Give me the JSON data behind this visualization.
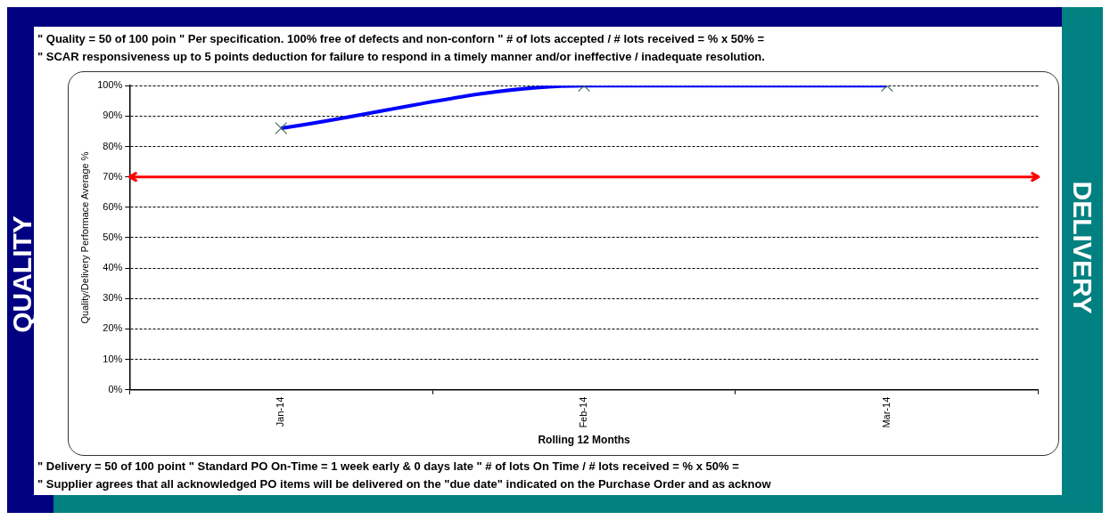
{
  "chart_data": {
    "type": "line",
    "xlabel": "Rolling 12 Months",
    "ylabel": "Quality/Delivery Performace Average %",
    "categories": [
      "Jan-14",
      "Feb-14",
      "Mar-14"
    ],
    "series": [
      {
        "color": "#0000ff",
        "values": [
          86,
          100,
          100
        ]
      }
    ],
    "ylim": [
      0,
      100
    ],
    "yticks": [
      {
        "value": 0,
        "label": "0%"
      },
      {
        "value": 10,
        "label": "10%"
      },
      {
        "value": 20,
        "label": "20%"
      },
      {
        "value": 30,
        "label": "30%"
      },
      {
        "value": 40,
        "label": "40%"
      },
      {
        "value": 50,
        "label": "50%"
      },
      {
        "value": 60,
        "label": "60%"
      },
      {
        "value": 70,
        "label": "70%"
      },
      {
        "value": 80,
        "label": "80%"
      },
      {
        "value": 90,
        "label": "90%"
      },
      {
        "value": 100,
        "label": "100%"
      }
    ],
    "grid": "y",
    "legend": false,
    "marker": "cross",
    "line_style": "solid",
    "ref_lines": [
      {
        "axis": "y",
        "value": 70,
        "color": "#ff0000"
      }
    ],
    "annotations": [
      "\" Quality = 50 of 100 poin \" Per specification. 100% free of defects and non-conforn \" # of lots accepted / # lots received = % x 50% =",
      "\" SCAR responsiveness up to 5 points deduction for failure to respond in a timely manner and/or ineffective / inadequate resolution.",
      "QUALITY",
      "DELIVERY",
      "\" Delivery = 50 of 100 point \" Standard PO On-Time = 1 week early & 0 days late \" # of lots On Time / # lots received = % x 50% =",
      "\" Supplier agrees that all acknowledged PO items will be delivered on the \"due date\" indicated on the Purchase Order and as acknow"
    ]
  }
}
